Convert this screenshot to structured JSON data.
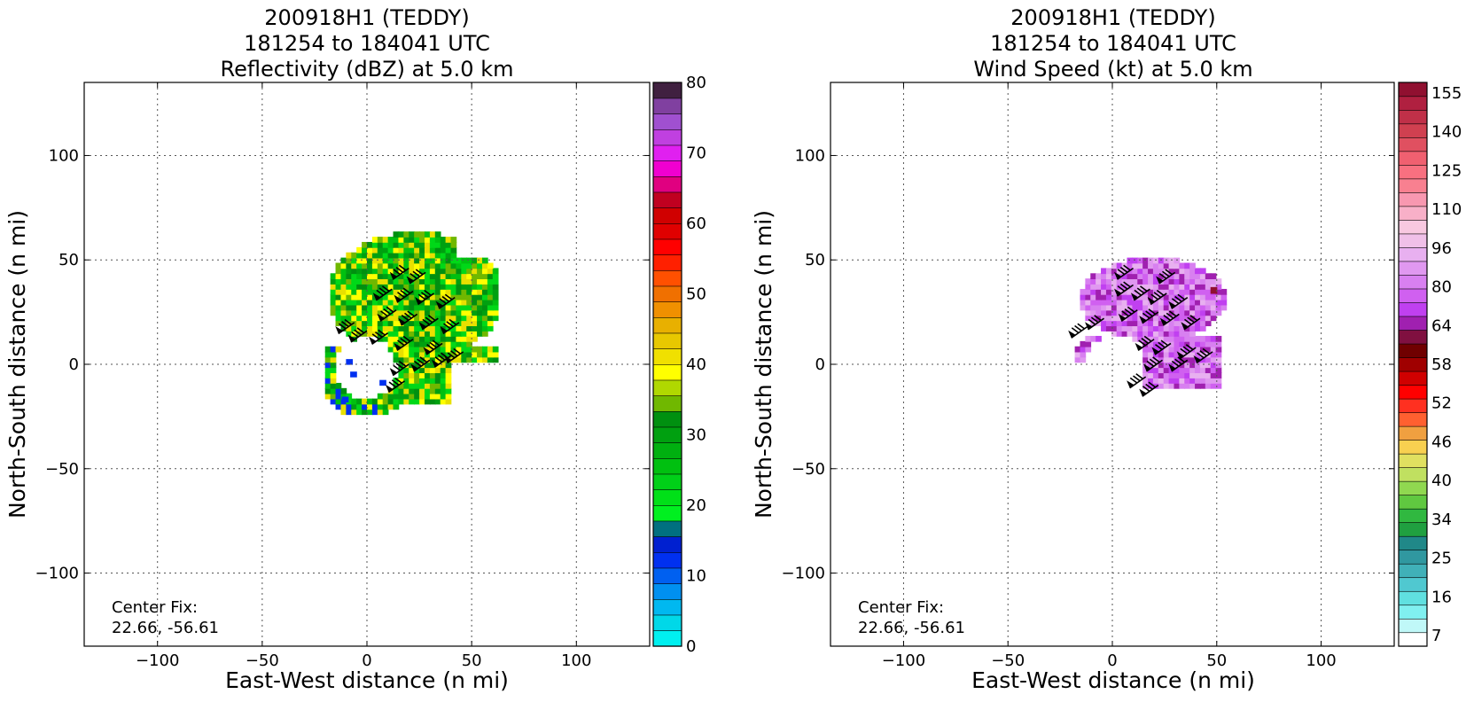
{
  "chart_data": [
    {
      "type": "heatmap",
      "title_lines": [
        "200918H1 (TEDDY)",
        "181254 to 184041 UTC",
        "Reflectivity (dBZ) at 5.0 km"
      ],
      "xlabel": "East-West distance (n mi)",
      "ylabel": "North-South distance (n mi)",
      "xlim": [
        -135,
        135
      ],
      "ylim": [
        -135,
        135
      ],
      "xticks": [
        -100,
        -50,
        0,
        50,
        100
      ],
      "yticks": [
        -100,
        -50,
        0,
        50,
        100
      ],
      "x_tick_labels": [
        "−100",
        "−50",
        "0",
        "50",
        "100"
      ],
      "y_tick_labels": [
        "−100",
        "−50",
        "0",
        "50",
        "100"
      ],
      "grid": true,
      "annotation_lines": [
        "Center Fix:",
        "22.66, -56.61"
      ],
      "colorbar": {
        "min": 0,
        "max": 80,
        "tick_values": [
          0,
          10,
          20,
          30,
          40,
          50,
          60,
          70,
          80
        ],
        "tick_labels": [
          "0",
          "10",
          "20",
          "30",
          "40",
          "50",
          "60",
          "70",
          "80"
        ],
        "colors": [
          "#00f0f0",
          "#00d8e8",
          "#00b8f0",
          "#0090f0",
          "#0060f0",
          "#0030f0",
          "#0020d0",
          "#007080",
          "#00f020",
          "#00e018",
          "#00d018",
          "#00c010",
          "#00b010",
          "#00a010",
          "#009010",
          "#70b800",
          "#b0d800",
          "#ffff00",
          "#f0e000",
          "#e8c800",
          "#e8b000",
          "#f09000",
          "#f07000",
          "#ff5000",
          "#ff2000",
          "#ff0000",
          "#e00000",
          "#d00000",
          "#c00020",
          "#e00080",
          "#f000d0",
          "#e020f0",
          "#c040e0",
          "#a050d0",
          "#8040a0",
          "#402040"
        ]
      },
      "field": {
        "description_colors": [
          "#00d818",
          "#ffff00",
          "#009010",
          "#0030f0"
        ],
        "barbs_present": true
      }
    },
    {
      "type": "heatmap",
      "title_lines": [
        "200918H1 (TEDDY)",
        "181254 to 184041 UTC",
        "Wind Speed (kt) at 5.0 km"
      ],
      "xlabel": "East-West distance (n mi)",
      "ylabel": "North-South distance (n mi)",
      "xlim": [
        -135,
        135
      ],
      "ylim": [
        -135,
        135
      ],
      "xticks": [
        -100,
        -50,
        0,
        50,
        100
      ],
      "yticks": [
        -100,
        -50,
        0,
        50,
        100
      ],
      "x_tick_labels": [
        "−100",
        "−50",
        "0",
        "50",
        "100"
      ],
      "y_tick_labels": [
        "−100",
        "−50",
        "0",
        "50",
        "100"
      ],
      "grid": true,
      "annotation_lines": [
        "Center Fix:",
        "22.66, -56.61"
      ],
      "colorbar": {
        "tick_labels": [
          "7",
          "16",
          "25",
          "34",
          "40",
          "46",
          "52",
          "58",
          "64",
          "80",
          "96",
          "110",
          "125",
          "140",
          "155"
        ],
        "colors": [
          "#ffffff",
          "#c0f8f8",
          "#80f0f0",
          "#60e0e0",
          "#50c8d0",
          "#40b0b8",
          "#3098a0",
          "#208888",
          "#20a040",
          "#30b840",
          "#60c840",
          "#90d850",
          "#c0e060",
          "#e0e060",
          "#f8d050",
          "#f0a040",
          "#ff6030",
          "#ff3020",
          "#ff0000",
          "#d00000",
          "#a00000",
          "#700000",
          "#801040",
          "#a020b0",
          "#c040f0",
          "#d060f0",
          "#d880f0",
          "#e098f0",
          "#e8b0f0",
          "#f0c0e8",
          "#f8c8e0",
          "#f8b0c8",
          "#f898b0",
          "#f88090",
          "#f87080",
          "#f06070",
          "#e05060",
          "#d04050",
          "#c03048",
          "#b02040",
          "#901030"
        ]
      }
    }
  ]
}
